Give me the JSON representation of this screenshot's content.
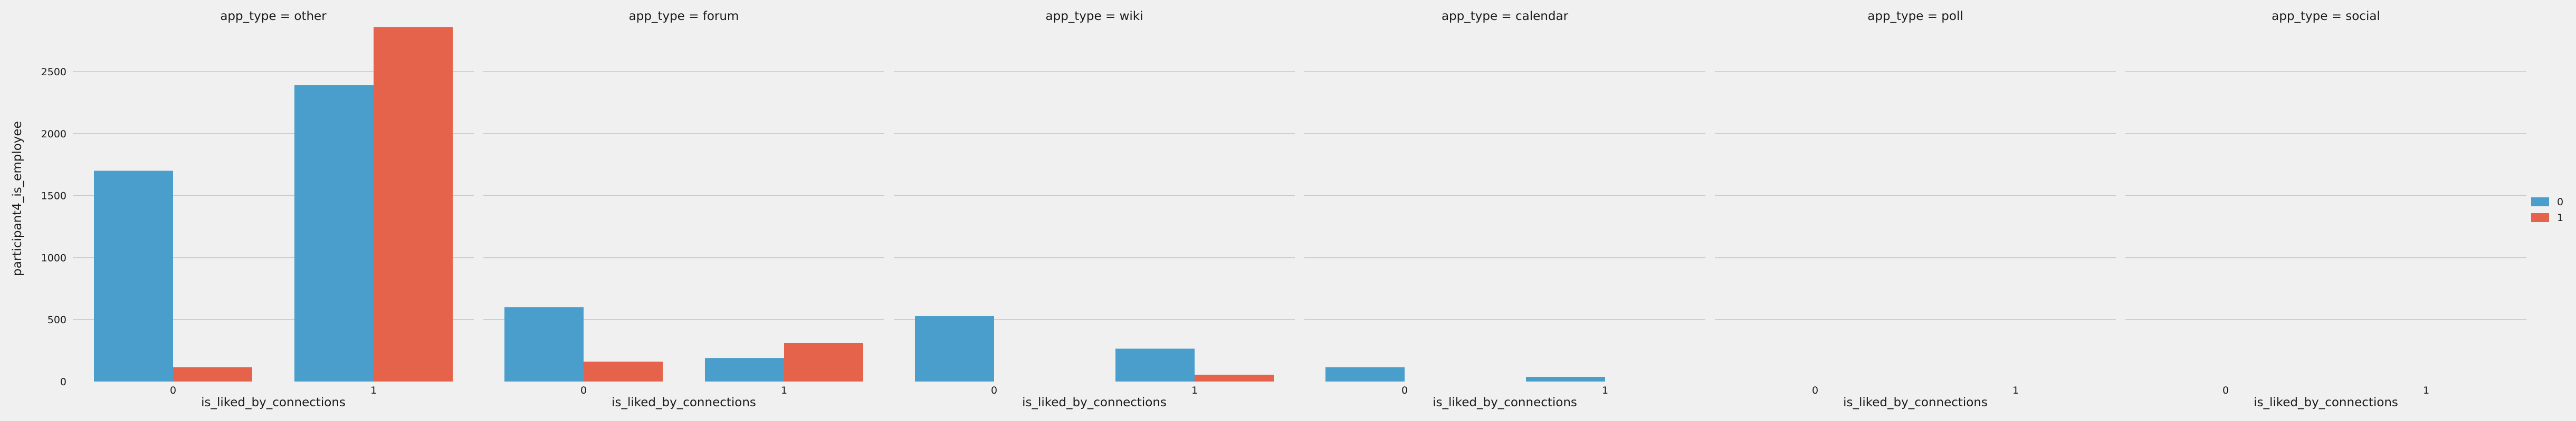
{
  "chart_data": {
    "type": "bar",
    "panel_variable": "app_type",
    "panel_title_template": "app_type = {v}",
    "panels": [
      "other",
      "forum",
      "wiki",
      "calendar",
      "poll",
      "social"
    ],
    "categories": [
      "0",
      "1"
    ],
    "xlabel": "is_liked_by_connections",
    "ylabel": "participant4_is_employee",
    "ylim": [
      0,
      2950
    ],
    "yticks": [
      0,
      500,
      1000,
      1500,
      2000,
      2500
    ],
    "grid": "horizontal",
    "legend_position": "right",
    "series": [
      {
        "name": "0",
        "color": "#4a9ecb",
        "values": {
          "other": [
            1700,
            2390
          ],
          "forum": [
            600,
            190
          ],
          "wiki": [
            530,
            265
          ],
          "calendar": [
            115,
            38
          ],
          "poll": [
            0,
            0
          ],
          "social": [
            0,
            0
          ]
        }
      },
      {
        "name": "1",
        "color": "#e5634a",
        "values": {
          "other": [
            115,
            2860
          ],
          "forum": [
            160,
            310
          ],
          "wiki": [
            0,
            55
          ],
          "calendar": [
            0,
            0
          ],
          "poll": [
            0,
            0
          ],
          "social": [
            0,
            0
          ]
        }
      }
    ]
  }
}
